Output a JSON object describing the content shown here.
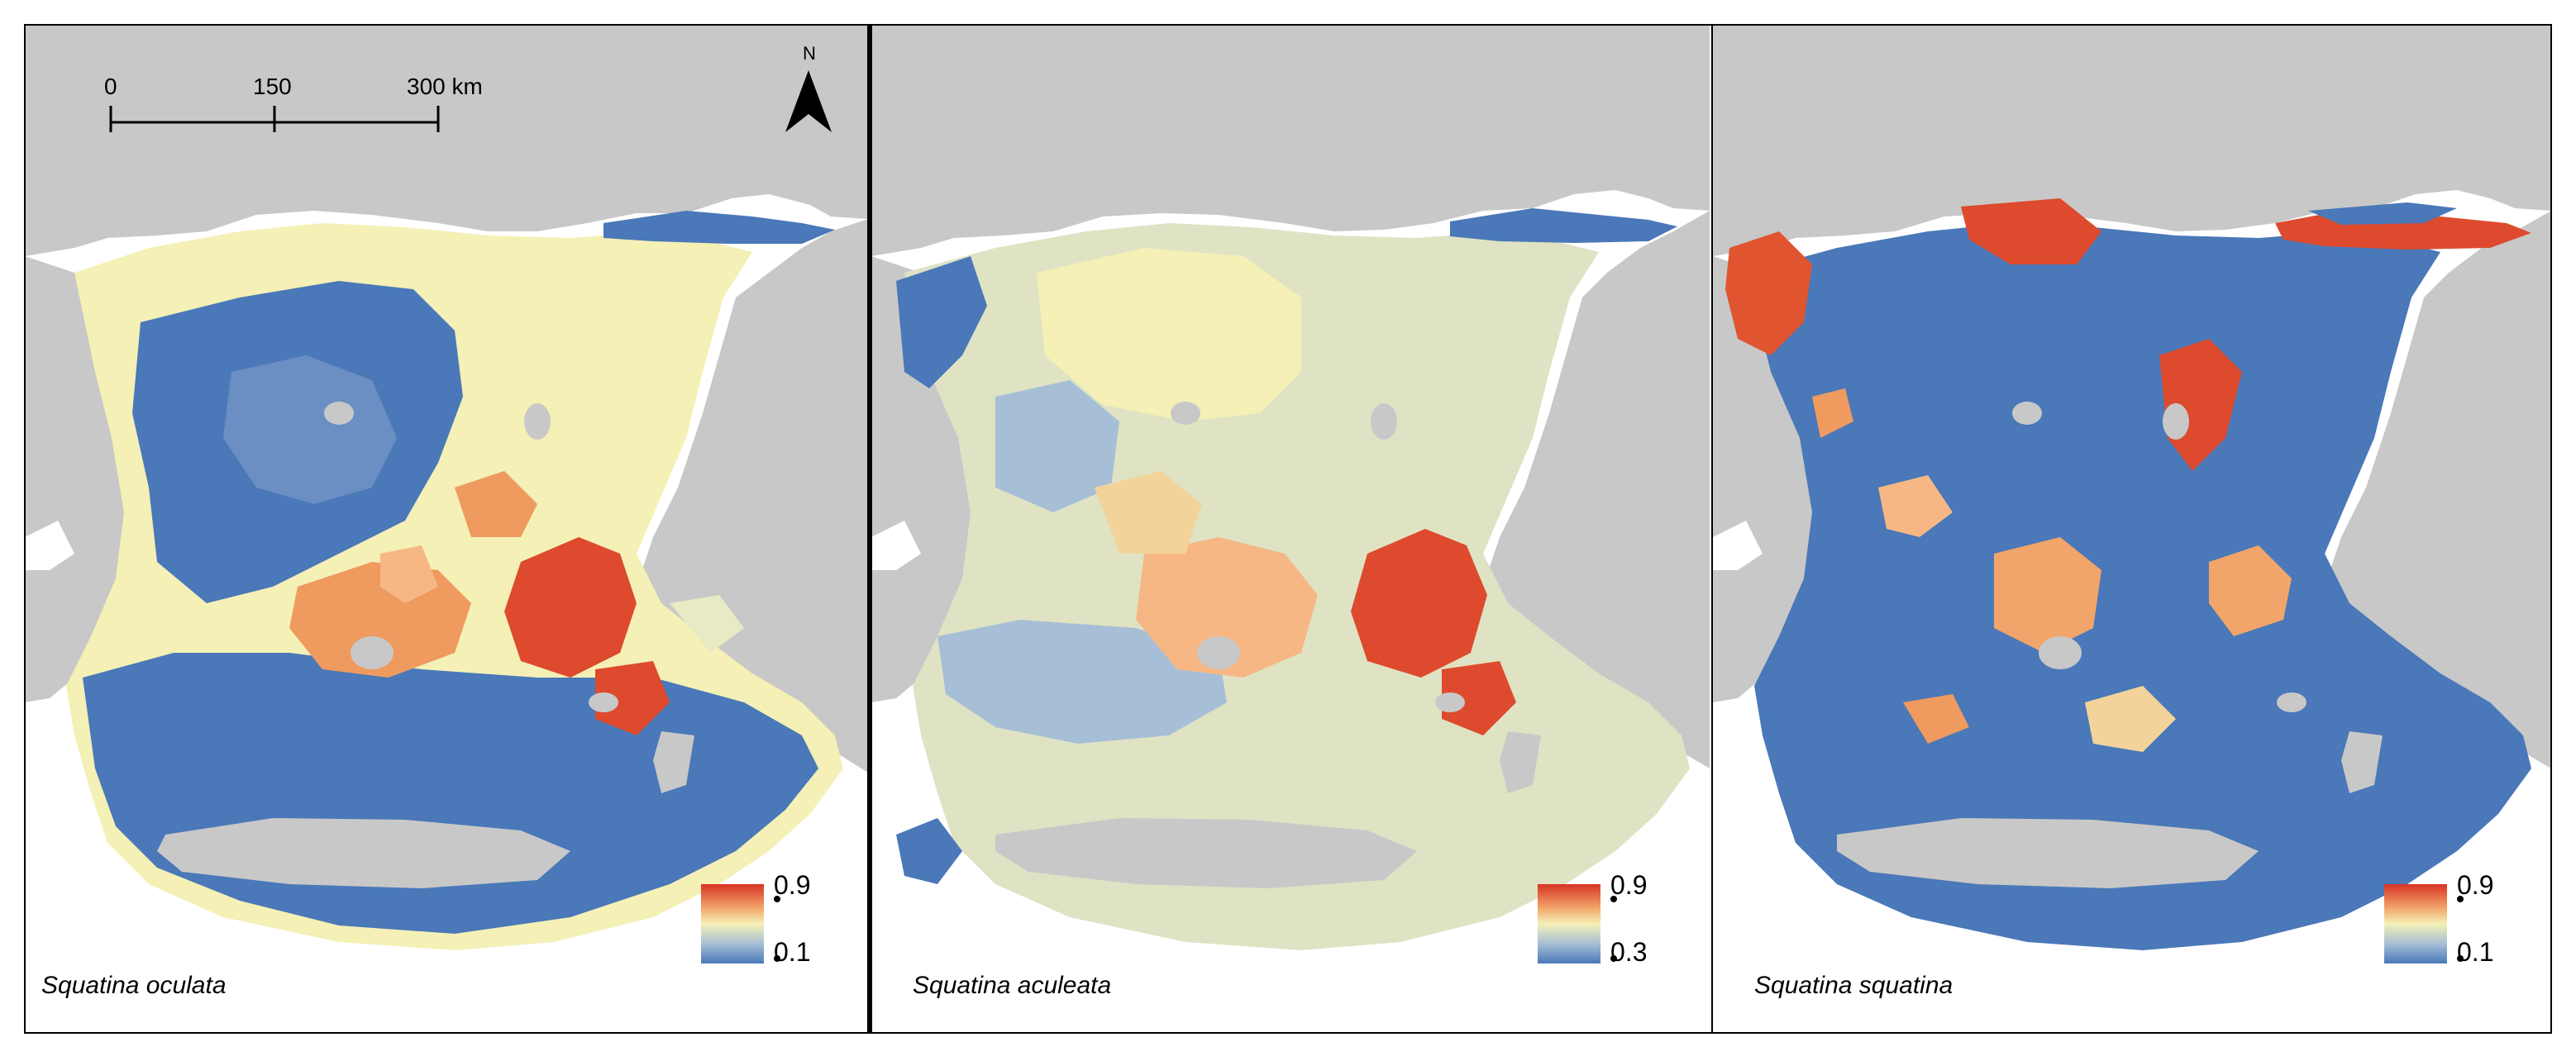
{
  "scale_bar": {
    "ticks": [
      "0",
      "150",
      "300 km"
    ]
  },
  "north_arrow": {
    "label": "N",
    "icon": "north-arrow-icon"
  },
  "colors": {
    "land": "#c8c8c8",
    "sea_background": "#ffffff",
    "frame": "#000000",
    "low": "#4a78b8",
    "mid": "#f4f0b6",
    "high": "#d83325"
  },
  "panels": [
    {
      "species": "Squatina oculata",
      "legend": {
        "max": "0.9",
        "min": "0.1"
      }
    },
    {
      "species": "Squatina aculeata",
      "legend": {
        "max": "0.9",
        "min": "0.3"
      }
    },
    {
      "species": "Squatina squatina",
      "legend": {
        "max": "0.9",
        "min": "0.1"
      }
    }
  ]
}
